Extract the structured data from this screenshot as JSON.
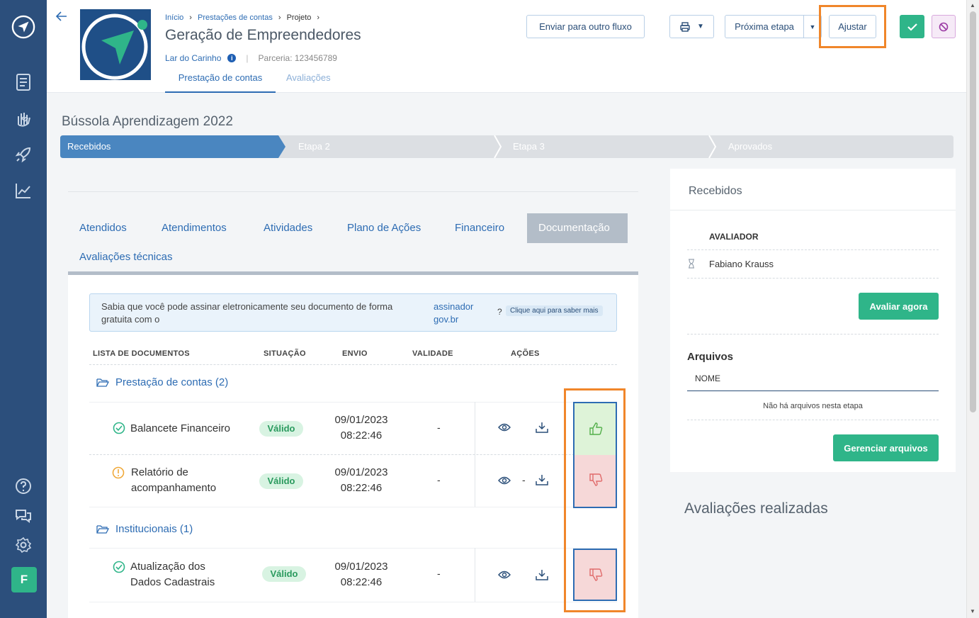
{
  "sidebar": {
    "avatar_letter": "F"
  },
  "header": {
    "breadcrumb": [
      "Início",
      "Prestações de contas",
      "Projeto"
    ],
    "title": "Geração de Empreendedores",
    "org_link": "Lar do Carinho",
    "parceria": "Parceria: 123456789",
    "tabs": [
      "Prestação de contas",
      "Avaliações"
    ],
    "buttons": {
      "send": "Enviar para outro fluxo",
      "next": "Próxima etapa",
      "adjust": "Ajustar"
    }
  },
  "main": {
    "title": "Bússola Aprendizagem 2022",
    "steps": [
      "Recebidos",
      "Etapa 2",
      "Etapa 3",
      "Aprovados"
    ],
    "tabs": [
      "Atendidos",
      "Atendimentos",
      "Atividades",
      "Plano de Ações",
      "Financeiro",
      "Documentação",
      "Avaliações técnicas"
    ],
    "notice": {
      "text": "Sabia que você pode assinar eletronicamente seu documento de forma gratuita com o",
      "link": "assinador gov.br",
      "q": "?",
      "help": "Clique aqui para saber mais"
    },
    "columns": [
      "LISTA DE DOCUMENTOS",
      "SITUAÇÃO",
      "ENVIO",
      "VALIDADE",
      "AÇÕES"
    ],
    "groups": [
      {
        "name": "Prestação de contas (2)"
      },
      {
        "name": "Institucionais (1)"
      }
    ],
    "documents": [
      {
        "name": "Balancete Financeiro",
        "status": "Válido",
        "date": "09/01/2023",
        "time": "08:22:46",
        "validity": "-"
      },
      {
        "name": "Relatório de acompanhamento",
        "status": "Válido",
        "date": "09/01/2023",
        "time": "08:22:46",
        "validity": "-",
        "extra": "-"
      },
      {
        "name": "Atualização dos Dados Cadastrais",
        "status": "Válido",
        "date": "09/01/2023",
        "time": "08:22:46",
        "validity": "-"
      }
    ]
  },
  "right": {
    "title": "Recebidos",
    "evaluator_header": "AVALIADOR",
    "evaluator": "Fabiano Krauss",
    "evaluate_btn": "Avaliar agora",
    "files_title": "Arquivos",
    "files_col": "NOME",
    "files_empty": "Não há arquivos nesta etapa",
    "manage_btn": "Gerenciar arquivos"
  },
  "evaluations_title": "Avaliações realizadas",
  "colors": {
    "sidebar": "#2c4f7c",
    "primary": "#2d6cb3",
    "success": "#2fb589",
    "highlight": "#f0862a",
    "step_active": "#4a86c0"
  }
}
